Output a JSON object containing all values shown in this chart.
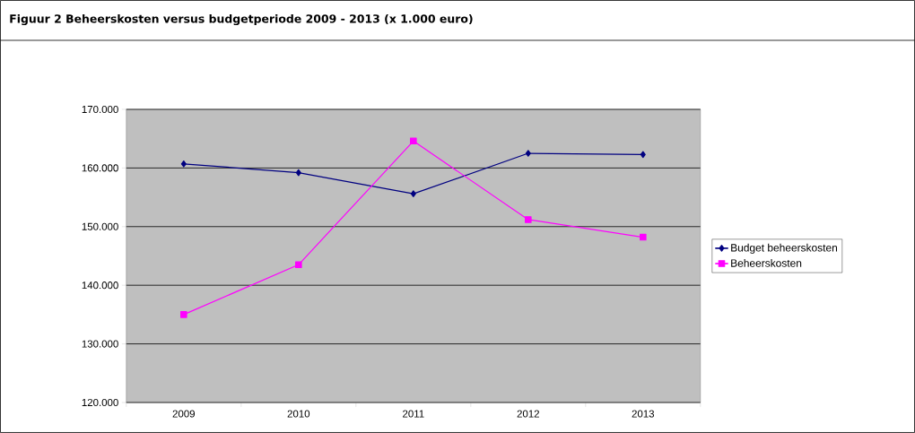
{
  "chart_data": {
    "type": "line",
    "title": "Figuur 2   Beheerskosten versus budgetperiode 2009 - 2013 (x 1.000 euro)",
    "categories": [
      "2009",
      "2010",
      "2011",
      "2012",
      "2013"
    ],
    "series": [
      {
        "name": "Budget beheerskosten",
        "color": "#000080",
        "marker": "diamond",
        "values": [
          160700,
          159200,
          155600,
          162500,
          162300
        ]
      },
      {
        "name": "Beheerskosten",
        "color": "#ff00ff",
        "marker": "square",
        "values": [
          135000,
          143500,
          164600,
          151200,
          148200
        ]
      }
    ],
    "ylim": [
      120000,
      170000
    ],
    "yticks": [
      {
        "value": 120000,
        "label": "120.000"
      },
      {
        "value": 130000,
        "label": "130.000"
      },
      {
        "value": 140000,
        "label": "140.000"
      },
      {
        "value": 150000,
        "label": "150.000"
      },
      {
        "value": 160000,
        "label": "160.000"
      },
      {
        "value": 170000,
        "label": "170.000"
      }
    ],
    "grid": "y",
    "legend": "right",
    "line_style": "solid"
  }
}
